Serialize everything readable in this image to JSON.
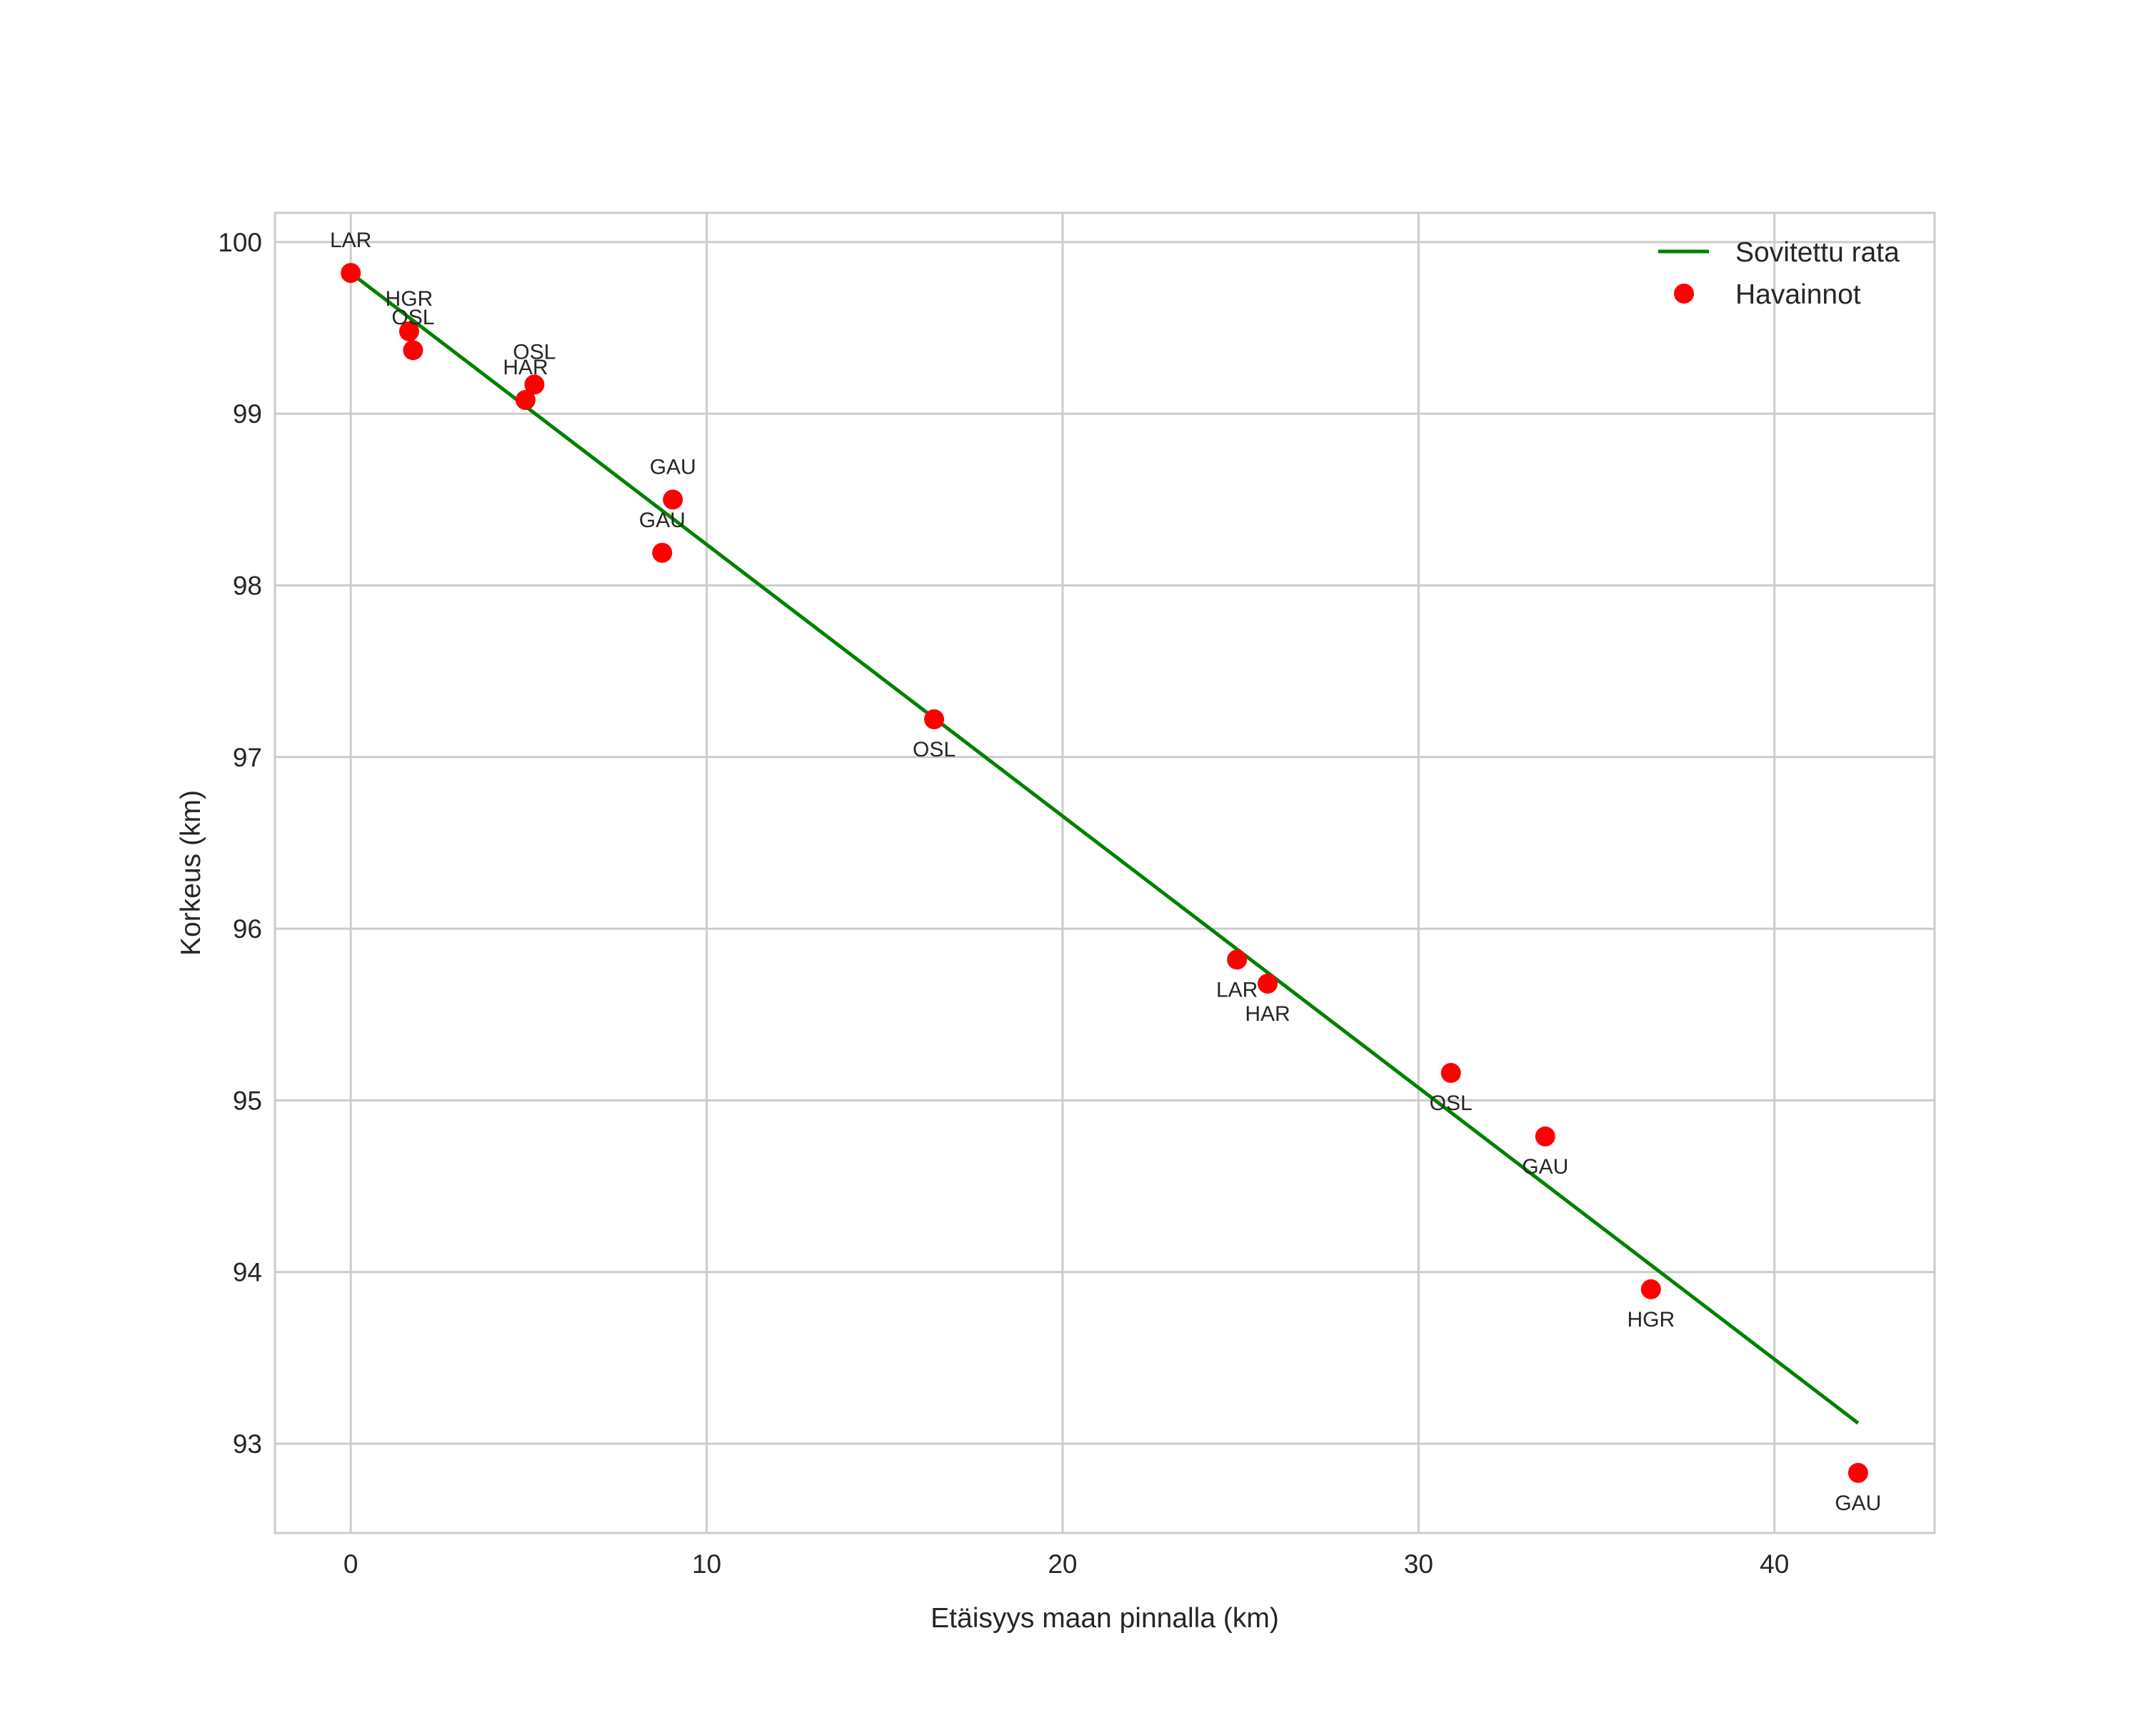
{
  "chart_data": {
    "type": "scatter",
    "title": "",
    "xlabel": "Etäisyys maan pinnalla (km)",
    "ylabel": "Korkeus (km)",
    "xlim": [
      -2.13,
      44.5
    ],
    "ylim": [
      92.48,
      100.17
    ],
    "xticks": [
      0,
      10,
      20,
      30,
      40
    ],
    "yticks": [
      93,
      94,
      95,
      96,
      97,
      98,
      99,
      100
    ],
    "grid": true,
    "legend_position": "upper right",
    "legend": [
      {
        "label": "Sovitettu rata",
        "kind": "line",
        "color": "#008000"
      },
      {
        "label": "Havainnot",
        "kind": "marker",
        "color": "#ff0000"
      }
    ],
    "series": [
      {
        "name": "Sovitettu rata",
        "type": "line",
        "color": "#008000",
        "x": [
          0.0,
          42.35
        ],
        "y": [
          99.82,
          93.12
        ]
      },
      {
        "name": "Havainnot",
        "type": "scatter",
        "color": "#ff0000",
        "points": [
          {
            "x": 0.0,
            "y": 99.82,
            "label": "LAR",
            "label_pos": "above"
          },
          {
            "x": 1.64,
            "y": 99.48,
            "label": "HGR",
            "label_pos": "above"
          },
          {
            "x": 1.75,
            "y": 99.37,
            "label": "OSL",
            "label_pos": "above"
          },
          {
            "x": 5.16,
            "y": 99.17,
            "label": "OSL",
            "label_pos": "above"
          },
          {
            "x": 4.91,
            "y": 99.08,
            "label": "HAR",
            "label_pos": "above"
          },
          {
            "x": 9.05,
            "y": 98.5,
            "label": "GAU",
            "label_pos": "above"
          },
          {
            "x": 8.75,
            "y": 98.19,
            "label": "GAU",
            "label_pos": "above"
          },
          {
            "x": 16.39,
            "y": 97.22,
            "label": "OSL",
            "label_pos": "below"
          },
          {
            "x": 24.9,
            "y": 95.82,
            "label": "LAR",
            "label_pos": "below"
          },
          {
            "x": 25.76,
            "y": 95.68,
            "label": "HAR",
            "label_pos": "below"
          },
          {
            "x": 30.91,
            "y": 95.16,
            "label": "OSL",
            "label_pos": "below"
          },
          {
            "x": 33.56,
            "y": 94.79,
            "label": "GAU",
            "label_pos": "below"
          },
          {
            "x": 36.53,
            "y": 93.9,
            "label": "HGR",
            "label_pos": "below"
          },
          {
            "x": 42.35,
            "y": 92.83,
            "label": "GAU",
            "label_pos": "below"
          }
        ]
      }
    ]
  },
  "colors": {
    "grid": "#cccccc",
    "spine": "#cccccc",
    "text": "#262626",
    "background": "#ffffff"
  }
}
